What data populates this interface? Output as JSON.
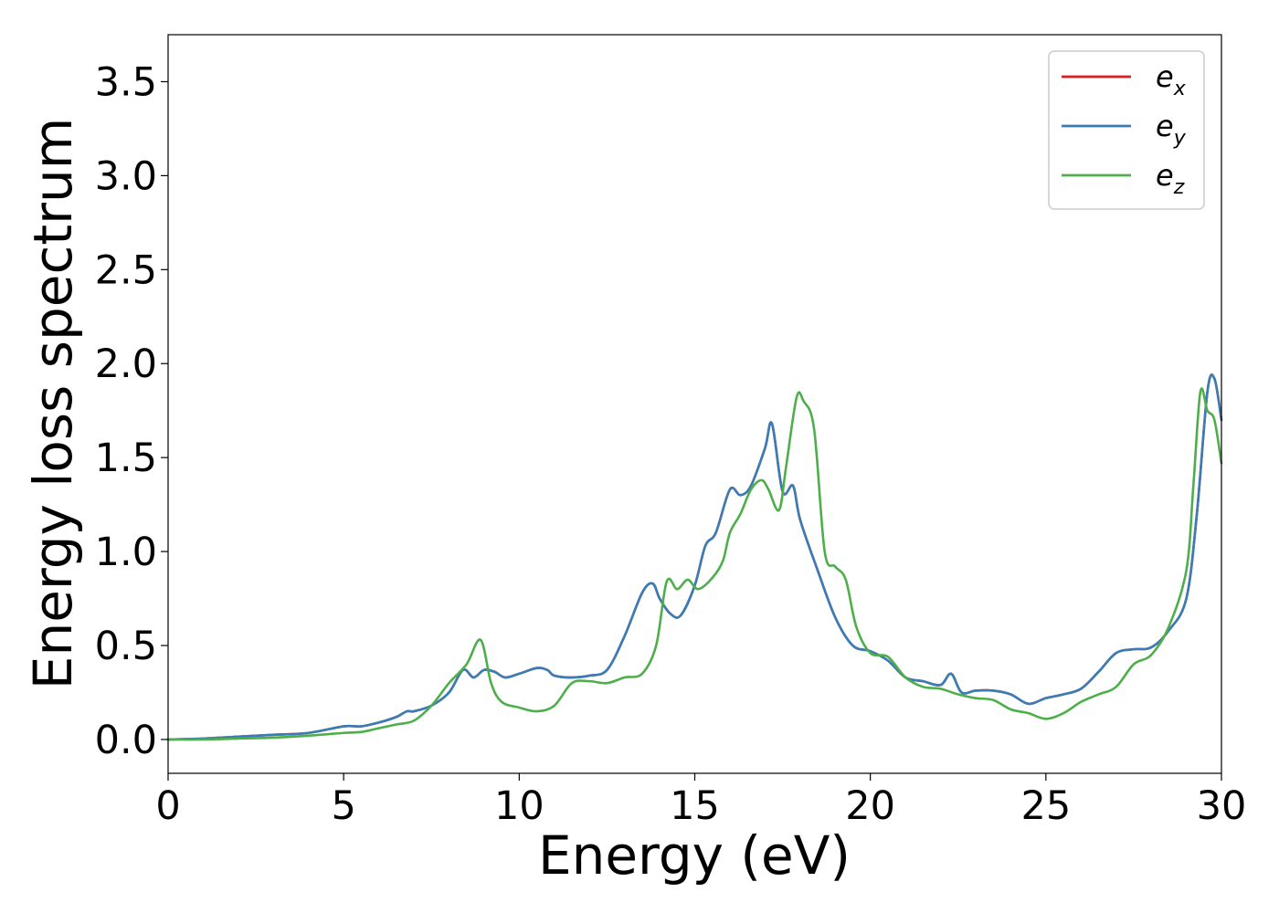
{
  "chart_data": {
    "type": "line",
    "title": "",
    "xlabel": "Energy (eV)",
    "ylabel": "Energy loss spectrum",
    "xlim": [
      0,
      30
    ],
    "ylim": [
      -0.18,
      3.75
    ],
    "xticks": [
      0,
      5,
      10,
      15,
      20,
      25,
      30
    ],
    "xtick_labels": [
      "0",
      "5",
      "10",
      "15",
      "20",
      "25",
      "30"
    ],
    "yticks": [
      0.0,
      0.5,
      1.0,
      1.5,
      2.0,
      2.5,
      3.0,
      3.5
    ],
    "ytick_labels": [
      "0.0",
      "0.5",
      "1.0",
      "1.5",
      "2.0",
      "2.5",
      "3.0",
      "3.5"
    ],
    "grid": false,
    "legend_position": "top-right",
    "series": [
      {
        "name": "e_x",
        "legend_base": "e",
        "legend_sub": "x",
        "color": "#e41a1c",
        "x": [
          0,
          1,
          2,
          3,
          4,
          5,
          5.5,
          6,
          6.5,
          6.8,
          7,
          7.5,
          8,
          8.4,
          8.7,
          9,
          9.3,
          9.6,
          10,
          10.5,
          10.8,
          11,
          11.5,
          12,
          12.5,
          13,
          13.5,
          13.8,
          14,
          14.3,
          14.6,
          15,
          15.3,
          15.6,
          16,
          16.3,
          16.6,
          17,
          17.2,
          17.5,
          17.8,
          18,
          18.5,
          19,
          19.5,
          20,
          20.5,
          21,
          21.5,
          22,
          22.3,
          22.6,
          23,
          23.5,
          24,
          24.5,
          25,
          25.5,
          26,
          26.5,
          27,
          27.5,
          28,
          28.5,
          29,
          29.3,
          29.6,
          29.8,
          30
        ],
        "values": [
          0,
          0.005,
          0.015,
          0.025,
          0.035,
          0.07,
          0.07,
          0.09,
          0.12,
          0.15,
          0.15,
          0.18,
          0.25,
          0.37,
          0.33,
          0.37,
          0.36,
          0.33,
          0.35,
          0.38,
          0.37,
          0.34,
          0.33,
          0.34,
          0.37,
          0.55,
          0.78,
          0.83,
          0.75,
          0.67,
          0.66,
          0.82,
          1.03,
          1.1,
          1.33,
          1.3,
          1.35,
          1.55,
          1.68,
          1.32,
          1.35,
          1.17,
          0.9,
          0.65,
          0.5,
          0.47,
          0.42,
          0.33,
          0.31,
          0.29,
          0.35,
          0.25,
          0.26,
          0.26,
          0.24,
          0.19,
          0.22,
          0.24,
          0.27,
          0.36,
          0.46,
          0.48,
          0.49,
          0.58,
          0.75,
          1.2,
          1.85,
          1.92,
          1.7
        ]
      },
      {
        "name": "e_y",
        "legend_base": "e",
        "legend_sub": "y",
        "color": "#377eb8",
        "x": [
          0,
          1,
          2,
          3,
          4,
          5,
          5.5,
          6,
          6.5,
          6.8,
          7,
          7.5,
          8,
          8.4,
          8.7,
          9,
          9.3,
          9.6,
          10,
          10.5,
          10.8,
          11,
          11.5,
          12,
          12.5,
          13,
          13.5,
          13.8,
          14,
          14.3,
          14.6,
          15,
          15.3,
          15.6,
          16,
          16.3,
          16.6,
          17,
          17.2,
          17.5,
          17.8,
          18,
          18.5,
          19,
          19.5,
          20,
          20.5,
          21,
          21.5,
          22,
          22.3,
          22.6,
          23,
          23.5,
          24,
          24.5,
          25,
          25.5,
          26,
          26.5,
          27,
          27.5,
          28,
          28.5,
          29,
          29.3,
          29.6,
          29.8,
          30
        ],
        "values": [
          0,
          0.005,
          0.015,
          0.025,
          0.035,
          0.07,
          0.07,
          0.09,
          0.12,
          0.15,
          0.15,
          0.18,
          0.25,
          0.37,
          0.33,
          0.37,
          0.36,
          0.33,
          0.35,
          0.38,
          0.37,
          0.34,
          0.33,
          0.34,
          0.37,
          0.55,
          0.78,
          0.83,
          0.75,
          0.67,
          0.66,
          0.82,
          1.03,
          1.1,
          1.33,
          1.3,
          1.35,
          1.55,
          1.68,
          1.32,
          1.35,
          1.17,
          0.9,
          0.65,
          0.5,
          0.47,
          0.42,
          0.33,
          0.31,
          0.29,
          0.35,
          0.25,
          0.26,
          0.26,
          0.24,
          0.19,
          0.22,
          0.24,
          0.27,
          0.36,
          0.46,
          0.48,
          0.49,
          0.58,
          0.75,
          1.2,
          1.85,
          1.92,
          1.7
        ]
      },
      {
        "name": "e_z",
        "legend_base": "e",
        "legend_sub": "z",
        "color": "#4daf4a",
        "x": [
          0,
          1,
          2,
          3,
          4,
          5,
          5.5,
          6,
          6.5,
          7,
          7.5,
          8,
          8.5,
          8.9,
          9.2,
          9.5,
          10,
          10.5,
          11,
          11.5,
          12,
          12.5,
          13,
          13.5,
          13.9,
          14.2,
          14.5,
          14.8,
          15.1,
          15.5,
          15.8,
          16,
          16.3,
          16.6,
          16.9,
          17.1,
          17.4,
          17.6,
          17.9,
          18.1,
          18.4,
          18.7,
          19,
          19.3,
          19.6,
          20,
          20.5,
          21,
          21.5,
          22,
          22.5,
          23,
          23.5,
          24,
          24.5,
          25,
          25.5,
          26,
          26.5,
          27,
          27.5,
          28,
          28.5,
          29,
          29.2,
          29.4,
          29.6,
          29.8,
          30
        ],
        "values": [
          0,
          0,
          0.005,
          0.01,
          0.02,
          0.035,
          0.04,
          0.06,
          0.08,
          0.1,
          0.18,
          0.3,
          0.4,
          0.53,
          0.3,
          0.2,
          0.17,
          0.15,
          0.18,
          0.3,
          0.31,
          0.3,
          0.33,
          0.35,
          0.5,
          0.84,
          0.8,
          0.85,
          0.8,
          0.86,
          0.95,
          1.1,
          1.2,
          1.33,
          1.38,
          1.33,
          1.22,
          1.45,
          1.82,
          1.8,
          1.65,
          1.0,
          0.92,
          0.85,
          0.6,
          0.46,
          0.44,
          0.33,
          0.28,
          0.27,
          0.24,
          0.22,
          0.21,
          0.16,
          0.14,
          0.11,
          0.14,
          0.2,
          0.24,
          0.28,
          0.4,
          0.45,
          0.6,
          0.9,
          1.35,
          1.85,
          1.75,
          1.7,
          1.47
        ]
      }
    ]
  }
}
